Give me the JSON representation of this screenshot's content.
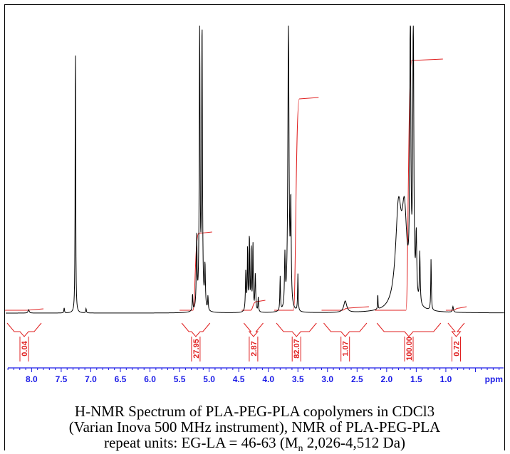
{
  "chart_data": {
    "type": "line",
    "xlabel": "ppm",
    "x_reversed": true,
    "xlim": [
      8.45,
      0.0
    ],
    "x_ticks": [
      8.0,
      7.5,
      7.0,
      6.5,
      6.0,
      5.5,
      5.0,
      4.5,
      4.0,
      3.5,
      3.0,
      2.5,
      2.0,
      1.5,
      1.0
    ],
    "x_tick_labels": [
      "8.0",
      "7.5",
      "7.0",
      "6.5",
      "6.0",
      "5.5",
      "5.0",
      "4.5",
      "4.0",
      "3.5",
      "3.0",
      "2.5",
      "2.0",
      "1.5",
      "1.0"
    ],
    "grid": false,
    "colors": {
      "spectrum": "#000000",
      "integral": "#e02020",
      "axis": "#1a1ae6"
    },
    "peaks": [
      {
        "ppm": 8.05,
        "intensity": 0.012,
        "width": 0.012
      },
      {
        "ppm": 7.45,
        "intensity": 0.018,
        "width": 0.006
      },
      {
        "ppm": 7.26,
        "intensity": 1.0,
        "width": 0.005
      },
      {
        "ppm": 7.08,
        "intensity": 0.016,
        "width": 0.006
      },
      {
        "ppm": 5.28,
        "intensity": 0.06,
        "width": 0.006
      },
      {
        "ppm": 5.21,
        "intensity": 0.25,
        "width": 0.008
      },
      {
        "ppm": 5.16,
        "intensity": 1.0,
        "width": 0.008
      },
      {
        "ppm": 5.12,
        "intensity": 1.0,
        "width": 0.008
      },
      {
        "ppm": 5.07,
        "intensity": 0.15,
        "width": 0.008
      },
      {
        "ppm": 5.02,
        "intensity": 0.05,
        "width": 0.006
      },
      {
        "ppm": 4.38,
        "intensity": 0.14,
        "width": 0.008
      },
      {
        "ppm": 4.35,
        "intensity": 0.22,
        "width": 0.006
      },
      {
        "ppm": 4.32,
        "intensity": 0.27,
        "width": 0.006
      },
      {
        "ppm": 4.29,
        "intensity": 0.23,
        "width": 0.006
      },
      {
        "ppm": 4.26,
        "intensity": 0.24,
        "width": 0.006
      },
      {
        "ppm": 4.22,
        "intensity": 0.13,
        "width": 0.008
      },
      {
        "ppm": 4.17,
        "intensity": 0.05,
        "width": 0.006
      },
      {
        "ppm": 3.8,
        "intensity": 0.12,
        "width": 0.006
      },
      {
        "ppm": 3.72,
        "intensity": 0.18,
        "width": 0.008
      },
      {
        "ppm": 3.66,
        "intensity": 1.0,
        "width": 0.012
      },
      {
        "ppm": 3.62,
        "intensity": 0.35,
        "width": 0.008
      },
      {
        "ppm": 3.5,
        "intensity": 0.13,
        "width": 0.006
      },
      {
        "ppm": 2.7,
        "intensity": 0.04,
        "width": 0.03
      },
      {
        "ppm": 2.15,
        "intensity": 0.06,
        "width": 0.004
      },
      {
        "ppm": 1.8,
        "intensity": 0.34,
        "width": 0.06
      },
      {
        "ppm": 1.7,
        "intensity": 0.3,
        "width": 0.05
      },
      {
        "ppm": 1.6,
        "intensity": 1.0,
        "width": 0.01
      },
      {
        "ppm": 1.55,
        "intensity": 1.0,
        "width": 0.01
      },
      {
        "ppm": 1.5,
        "intensity": 0.22,
        "width": 0.01
      },
      {
        "ppm": 1.44,
        "intensity": 0.18,
        "width": 0.008
      },
      {
        "ppm": 1.25,
        "intensity": 0.18,
        "width": 0.006
      },
      {
        "ppm": 0.88,
        "intensity": 0.02,
        "width": 0.01
      }
    ],
    "integrals": [
      {
        "label": "0.04",
        "from": 8.45,
        "to": 7.8,
        "rise": 0.0
      },
      {
        "label": "27.95",
        "from": 5.5,
        "to": 4.95,
        "rise": 0.36
      },
      {
        "label": "2.87",
        "from": 4.45,
        "to": 4.05,
        "rise": 0.04
      },
      {
        "label": "82.07",
        "from": 3.9,
        "to": 3.15,
        "rise": 0.99
      },
      {
        "label": "1.07",
        "from": 3.1,
        "to": 2.3,
        "rise": 0.01
      },
      {
        "label": "100.00",
        "from": 2.2,
        "to": 1.05,
        "rise": 1.17
      },
      {
        "label": "0.72",
        "from": 1.0,
        "to": 0.65,
        "rise": 0.01
      }
    ]
  },
  "caption": {
    "line1": "H-NMR Spectrum of PLA-PEG-PLA copolymers in CDCl3",
    "line2": "(Varian Inova 500 MHz instrument), NMR of PLA-PEG-PLA",
    "line3_prefix": "repeat units: EG-LA = 46-63 (M",
    "line3_sub": "n",
    "line3_suffix": " 2,026-4,512 Da)"
  }
}
